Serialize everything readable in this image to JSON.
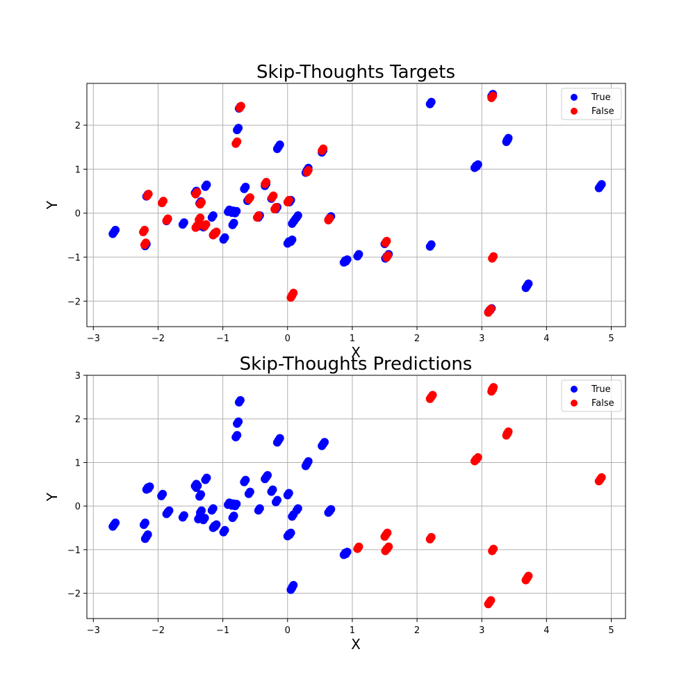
{
  "colors": {
    "true": "#0000ff",
    "false": "#ff0000",
    "grid": "#b0b0b0"
  },
  "chart_data": [
    {
      "type": "scatter",
      "title": "Skip-Thoughts Targets",
      "xlabel": "X",
      "ylabel": "Y",
      "xlim": [
        -3.1,
        5.22
      ],
      "ylim": [
        -2.58,
        2.95
      ],
      "xticks": [
        -3,
        -2,
        -1,
        0,
        1,
        2,
        3,
        4,
        5
      ],
      "yticks": [
        -2,
        -1,
        0,
        1,
        2
      ],
      "grid": true,
      "legend_position": "top-right",
      "series": [
        {
          "name": "True",
          "color": "#0000ff",
          "points": [
            [
              -2.7,
              -0.47
            ],
            [
              -2.68,
              -0.43
            ],
            [
              -2.2,
              -0.75
            ],
            [
              -2.18,
              0.38
            ],
            [
              -1.87,
              -0.18
            ],
            [
              -1.62,
              -0.26
            ],
            [
              -1.43,
              0.46
            ],
            [
              -1.36,
              0.22
            ],
            [
              -1.38,
              -0.3
            ],
            [
              -1.3,
              -0.32
            ],
            [
              -1.27,
              0.6
            ],
            [
              -1.17,
              -0.1
            ],
            [
              -1.15,
              -0.5
            ],
            [
              -0.99,
              -0.6
            ],
            [
              -0.92,
              0.03
            ],
            [
              -0.86,
              0.01
            ],
            [
              -0.85,
              -0.27
            ],
            [
              -0.81,
              0.0
            ],
            [
              -0.78,
              1.89
            ],
            [
              -0.75,
              2.38
            ],
            [
              -0.67,
              0.55
            ],
            [
              -0.62,
              0.28
            ],
            [
              -0.45,
              -0.1
            ],
            [
              -0.35,
              0.62
            ],
            [
              -0.25,
              0.33
            ],
            [
              -0.18,
              0.09
            ],
            [
              -0.16,
              1.46
            ],
            [
              -0.14,
              1.51
            ],
            [
              0.0,
              -0.69
            ],
            [
              0.05,
              -0.65
            ],
            [
              0.07,
              -0.24
            ],
            [
              0.1,
              -0.18
            ],
            [
              0.14,
              -0.1
            ],
            [
              0.03,
              0.25
            ],
            [
              0.28,
              0.92
            ],
            [
              0.3,
              0.98
            ],
            [
              0.53,
              1.38
            ],
            [
              0.63,
              -0.15
            ],
            [
              0.65,
              -0.12
            ],
            [
              0.87,
              -1.12
            ],
            [
              0.9,
              -1.1
            ],
            [
              1.08,
              -0.98
            ],
            [
              1.51,
              -1.03
            ],
            [
              1.54,
              -0.98
            ],
            [
              1.5,
              -0.7
            ],
            [
              2.2,
              -0.76
            ],
            [
              2.2,
              2.48
            ],
            [
              2.89,
              1.03
            ],
            [
              2.92,
              1.06
            ],
            [
              3.1,
              -2.25
            ],
            [
              3.13,
              -2.21
            ],
            [
              3.15,
              2.66
            ],
            [
              3.38,
              1.62
            ],
            [
              3.39,
              1.66
            ],
            [
              3.68,
              -1.7
            ],
            [
              3.7,
              -1.65
            ],
            [
              4.81,
              0.57
            ],
            [
              4.83,
              0.61
            ]
          ]
        },
        {
          "name": "False",
          "color": "#ff0000",
          "points": [
            [
              -2.23,
              -0.43
            ],
            [
              -2.21,
              -0.72
            ],
            [
              -2.17,
              0.39
            ],
            [
              -1.94,
              0.23
            ],
            [
              -1.87,
              -0.17
            ],
            [
              -1.42,
              -0.33
            ],
            [
              -1.38,
              -0.28
            ],
            [
              -1.37,
              -0.15
            ],
            [
              -1.35,
              0.2
            ],
            [
              -1.28,
              -0.3
            ],
            [
              -1.42,
              0.43
            ],
            [
              -1.15,
              -0.5
            ],
            [
              -1.12,
              -0.47
            ],
            [
              -0.8,
              1.58
            ],
            [
              -0.74,
              2.39
            ],
            [
              -0.6,
              0.31
            ],
            [
              -0.47,
              -0.1
            ],
            [
              -0.35,
              0.66
            ],
            [
              -0.24,
              0.35
            ],
            [
              -0.2,
              0.09
            ],
            [
              0.0,
              0.25
            ],
            [
              0.05,
              -1.92
            ],
            [
              0.07,
              -1.86
            ],
            [
              0.3,
              0.93
            ],
            [
              0.53,
              1.42
            ],
            [
              0.63,
              -0.16
            ],
            [
              1.51,
              -0.68
            ],
            [
              1.53,
              -1.01
            ],
            [
              3.1,
              -2.26
            ],
            [
              3.12,
              -2.22
            ],
            [
              3.15,
              2.62
            ],
            [
              3.16,
              -1.03
            ]
          ]
        }
      ]
    },
    {
      "type": "scatter",
      "title": "Skip-Thoughts Predictions",
      "xlabel": "X",
      "ylabel": "Y",
      "xlim": [
        -3.1,
        5.22
      ],
      "ylim": [
        -2.58,
        3.0
      ],
      "xticks": [
        -3,
        -2,
        -1,
        0,
        1,
        2,
        3,
        4,
        5
      ],
      "yticks": [
        -2,
        -1,
        0,
        1,
        2,
        3
      ],
      "grid": true,
      "legend_position": "top-right",
      "series": [
        {
          "name": "True",
          "color": "#0000ff",
          "points": [
            [
              -2.7,
              -0.47
            ],
            [
              -2.68,
              -0.43
            ],
            [
              -2.22,
              -0.43
            ],
            [
              -2.2,
              -0.75
            ],
            [
              -2.18,
              -0.7
            ],
            [
              -2.18,
              0.38
            ],
            [
              -2.15,
              0.4
            ],
            [
              -1.95,
              0.23
            ],
            [
              -1.87,
              -0.18
            ],
            [
              -1.85,
              -0.15
            ],
            [
              -1.62,
              -0.26
            ],
            [
              -1.43,
              0.46
            ],
            [
              -1.41,
              0.42
            ],
            [
              -1.36,
              0.22
            ],
            [
              -1.38,
              -0.3
            ],
            [
              -1.35,
              -0.15
            ],
            [
              -1.3,
              -0.32
            ],
            [
              -1.27,
              0.6
            ],
            [
              -1.17,
              -0.1
            ],
            [
              -1.15,
              -0.5
            ],
            [
              -1.12,
              -0.47
            ],
            [
              -0.99,
              -0.6
            ],
            [
              -0.92,
              0.03
            ],
            [
              -0.86,
              0.01
            ],
            [
              -0.85,
              -0.27
            ],
            [
              -0.81,
              0.0
            ],
            [
              -0.8,
              1.58
            ],
            [
              -0.78,
              1.89
            ],
            [
              -0.75,
              2.38
            ],
            [
              -0.67,
              0.55
            ],
            [
              -0.6,
              0.28
            ],
            [
              -0.45,
              -0.1
            ],
            [
              -0.35,
              0.62
            ],
            [
              -0.33,
              0.66
            ],
            [
              -0.25,
              0.33
            ],
            [
              -0.18,
              0.09
            ],
            [
              -0.16,
              1.46
            ],
            [
              -0.14,
              1.51
            ],
            [
              0.0,
              -0.69
            ],
            [
              0.03,
              -0.66
            ],
            [
              0.07,
              -0.24
            ],
            [
              0.14,
              -0.1
            ],
            [
              0.0,
              0.25
            ],
            [
              0.05,
              -1.92
            ],
            [
              0.07,
              -1.86
            ],
            [
              0.28,
              0.92
            ],
            [
              0.3,
              0.98
            ],
            [
              0.53,
              1.38
            ],
            [
              0.55,
              1.42
            ],
            [
              0.63,
              -0.15
            ],
            [
              0.65,
              -0.12
            ],
            [
              0.87,
              -1.12
            ],
            [
              0.9,
              -1.1
            ]
          ]
        },
        {
          "name": "False",
          "color": "#ff0000",
          "points": [
            [
              1.08,
              -0.98
            ],
            [
              1.51,
              -1.03
            ],
            [
              1.54,
              -0.98
            ],
            [
              1.5,
              -0.7
            ],
            [
              1.52,
              -0.66
            ],
            [
              2.2,
              -0.76
            ],
            [
              2.2,
              2.46
            ],
            [
              2.22,
              2.5
            ],
            [
              2.89,
              1.03
            ],
            [
              2.92,
              1.07
            ],
            [
              3.1,
              -2.25
            ],
            [
              3.12,
              -2.21
            ],
            [
              3.15,
              2.63
            ],
            [
              3.16,
              2.68
            ],
            [
              3.16,
              -1.03
            ],
            [
              3.38,
              1.62
            ],
            [
              3.39,
              1.66
            ],
            [
              3.68,
              -1.7
            ],
            [
              3.7,
              -1.65
            ],
            [
              4.81,
              0.57
            ],
            [
              4.83,
              0.61
            ]
          ]
        }
      ]
    }
  ]
}
